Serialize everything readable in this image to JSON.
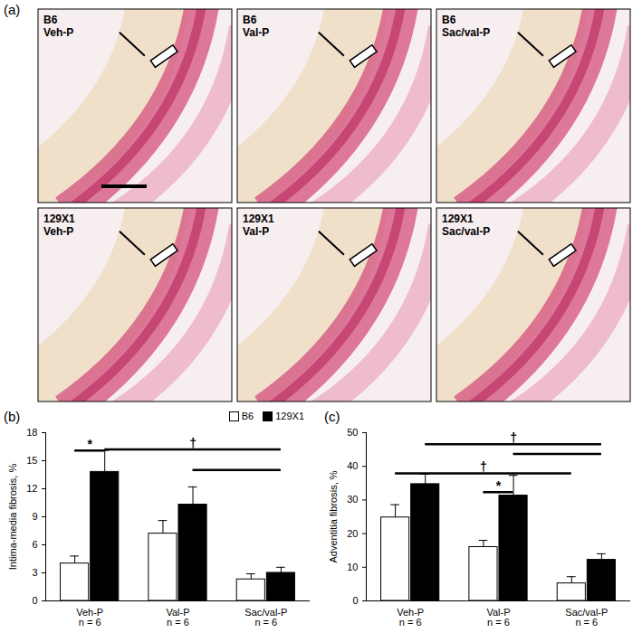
{
  "panel_a": {
    "label": "(a)",
    "images": [
      {
        "strain": "B6",
        "treatment": "Veh-P"
      },
      {
        "strain": "B6",
        "treatment": "Val-P"
      },
      {
        "strain": "B6",
        "treatment": "Sac/val-P"
      },
      {
        "strain": "129X1",
        "treatment": "Veh-P"
      },
      {
        "strain": "129X1",
        "treatment": "Val-P"
      },
      {
        "strain": "129X1",
        "treatment": "Sac/val-P"
      }
    ]
  },
  "chart_data": [
    {
      "type": "bar",
      "title": "(b)",
      "y_label": "Intima-media fibrosis, %",
      "categories": [
        "Veh-P\nn = 6",
        "Val-P\nn = 6",
        "Sac/val-P\nn = 6"
      ],
      "series": [
        {
          "name": "B6",
          "color": "#ffffff",
          "values": [
            4.0,
            7.2,
            2.3
          ],
          "errors": [
            0.8,
            1.4,
            0.6
          ]
        },
        {
          "name": "129X1",
          "color": "#000000",
          "values": [
            13.8,
            10.3,
            3.0
          ],
          "errors": [
            2.3,
            1.9,
            0.6
          ]
        }
      ],
      "ylim": [
        0,
        18
      ],
      "yticks": [
        0,
        3,
        6,
        9,
        12,
        15,
        18
      ],
      "legend": "top-right",
      "annotations": [
        {
          "text": "*",
          "y": 16.1,
          "from": [
            0,
            "B6"
          ],
          "to": [
            0,
            "129X1"
          ]
        },
        {
          "text": "†",
          "y": 16.2,
          "from": [
            0,
            "129X1"
          ],
          "to": [
            2,
            "129X1"
          ]
        },
        {
          "y": 14.0,
          "from": [
            1,
            "129X1"
          ],
          "to": [
            2,
            "129X1"
          ]
        }
      ]
    },
    {
      "type": "bar",
      "title": "(c)",
      "y_label": "Adventitia fibrosis, %",
      "categories": [
        "Veh-P\nn = 6",
        "Val-P\nn = 6",
        "Sac/val-P\nn = 6"
      ],
      "series": [
        {
          "name": "B6",
          "color": "#ffffff",
          "values": [
            24.8,
            16.0,
            5.2
          ],
          "errors": [
            3.8,
            2.0,
            2.0
          ]
        },
        {
          "name": "129X1",
          "color": "#000000",
          "values": [
            34.7,
            31.3,
            12.2
          ],
          "errors": [
            3.0,
            6.0,
            1.8
          ]
        }
      ],
      "ylim": [
        0,
        50
      ],
      "yticks": [
        0,
        10,
        20,
        30,
        40,
        50
      ],
      "annotations": [
        {
          "text": "†",
          "y": 37.9,
          "from": [
            0,
            "B6"
          ],
          "to": [
            2,
            "B6"
          ]
        },
        {
          "text": "*",
          "y": 32.3,
          "from": [
            1,
            "B6"
          ],
          "to": [
            1,
            "129X1"
          ]
        },
        {
          "text": "†",
          "y": 46.6,
          "from": [
            0,
            "129X1"
          ],
          "to": [
            2,
            "129X1"
          ]
        },
        {
          "y": 43.7,
          "from": [
            1,
            "129X1"
          ],
          "to": [
            2,
            "129X1"
          ]
        }
      ]
    }
  ]
}
